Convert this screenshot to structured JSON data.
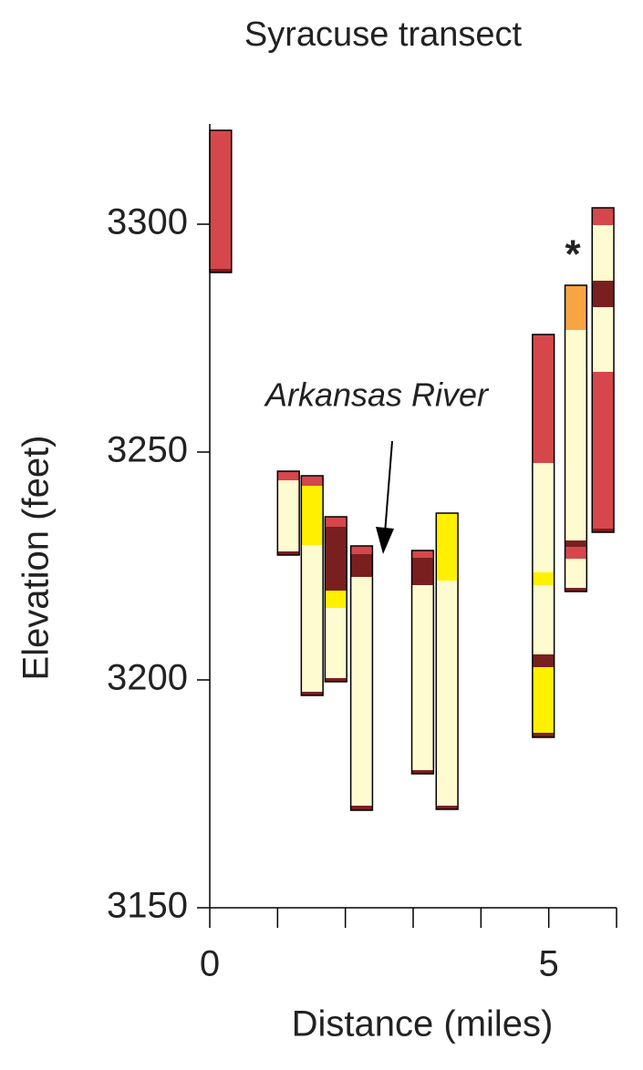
{
  "chart_data": {
    "type": "column-stack",
    "title": "Syracuse transect",
    "xlabel": "Distance (miles)",
    "ylabel": "Elevation (feet)",
    "xlim": [
      0,
      6
    ],
    "xticks": [
      0,
      5
    ],
    "xminor_ticks": [
      1,
      2,
      3,
      4,
      6
    ],
    "ylim": [
      3150,
      3322
    ],
    "yticks": [
      3150,
      3200,
      3250,
      3300
    ],
    "column_width": 0.32,
    "colors": {
      "red": "#d5474b",
      "dark": "#7a1f20",
      "cream": "#fffbd0",
      "yellow": "#fff000",
      "orange": "#f7a443"
    },
    "annotations": [
      "Arkansas River",
      "*"
    ],
    "columns": [
      {
        "x": 0.16,
        "base": 3289.4,
        "segments": [
          {
            "color": "dark",
            "thickness": 0.8
          },
          {
            "color": "red",
            "thickness": 30.4
          }
        ]
      },
      {
        "x": 1.16,
        "base": 3227.4,
        "segments": [
          {
            "color": "dark",
            "thickness": 0.8
          },
          {
            "color": "cream",
            "thickness": 15.6
          },
          {
            "color": "red",
            "thickness": 2.0
          }
        ]
      },
      {
        "x": 1.51,
        "base": 3196.6,
        "segments": [
          {
            "color": "dark",
            "thickness": 0.8
          },
          {
            "color": "cream",
            "thickness": 32.2
          },
          {
            "color": "yellow",
            "thickness": 13
          },
          {
            "color": "red",
            "thickness": 2.2
          }
        ]
      },
      {
        "x": 1.86,
        "base": 3199.6,
        "segments": [
          {
            "color": "dark",
            "thickness": 0.8
          },
          {
            "color": "cream",
            "thickness": 15.4
          },
          {
            "color": "yellow",
            "thickness": 3.8
          },
          {
            "color": "dark",
            "thickness": 14
          },
          {
            "color": "red",
            "thickness": 2.2
          }
        ]
      },
      {
        "x": 2.24,
        "base": 3171.4,
        "segments": [
          {
            "color": "dark",
            "thickness": 1
          },
          {
            "color": "cream",
            "thickness": 50.2
          },
          {
            "color": "dark",
            "thickness": 5
          },
          {
            "color": "red",
            "thickness": 1.8
          }
        ]
      },
      {
        "x": 3.14,
        "base": 3179.4,
        "segments": [
          {
            "color": "dark",
            "thickness": 0.8
          },
          {
            "color": "cream",
            "thickness": 40.6
          },
          {
            "color": "dark",
            "thickness": 6
          },
          {
            "color": "red",
            "thickness": 1.6
          }
        ]
      },
      {
        "x": 3.5,
        "base": 3171.6,
        "segments": [
          {
            "color": "dark",
            "thickness": 0.8
          },
          {
            "color": "cream",
            "thickness": 49.4
          },
          {
            "color": "yellow",
            "thickness": 14.8
          }
        ]
      },
      {
        "x": 4.92,
        "base": 3187.4,
        "segments": [
          {
            "color": "dark",
            "thickness": 1
          },
          {
            "color": "yellow",
            "thickness": 14.4
          },
          {
            "color": "dark",
            "thickness": 2.8
          },
          {
            "color": "cream",
            "thickness": 15.2
          },
          {
            "color": "yellow",
            "thickness": 2.8
          },
          {
            "color": "cream",
            "thickness": 24
          },
          {
            "color": "red",
            "thickness": 28.2
          }
        ]
      },
      {
        "x": 5.4,
        "base": 3219.4,
        "segments": [
          {
            "color": "dark",
            "thickness": 0.8
          },
          {
            "color": "cream",
            "thickness": 6.4
          },
          {
            "color": "red",
            "thickness": 2.6
          },
          {
            "color": "dark",
            "thickness": 1.4
          },
          {
            "color": "cream",
            "thickness": 46.2
          },
          {
            "color": "orange",
            "thickness": 9.8
          }
        ]
      },
      {
        "x": 5.8,
        "base": 3232.4,
        "segments": [
          {
            "color": "dark",
            "thickness": 0.8
          },
          {
            "color": "red",
            "thickness": 34.4
          },
          {
            "color": "cream",
            "thickness": 14.2
          },
          {
            "color": "dark",
            "thickness": 5.8
          },
          {
            "color": "cream",
            "thickness": 12.2
          },
          {
            "color": "red",
            "thickness": 3.8
          }
        ]
      }
    ]
  }
}
